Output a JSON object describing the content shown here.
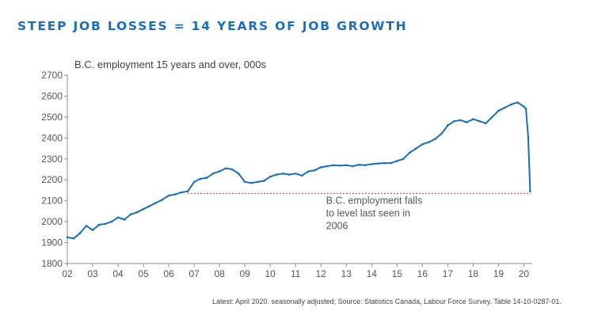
{
  "headline": "STEEP JOB LOSSES = 14 YEARS OF JOB GROWTH",
  "footnote": "Latest:  April 2020. seasonally adjusted;   Source: Statistics Canada, Labour Force Survey. Table 14-10-0287-01.",
  "colors": {
    "headline": "#1f6db2",
    "series": "#1f6db2",
    "reference": "#d62728",
    "axis": "#888888"
  },
  "chart_data": {
    "type": "line",
    "title": "B.C. employment 15 years and over, 000s",
    "xlabel": "",
    "ylabel": "",
    "x_tick_labels": [
      "02",
      "03",
      "04",
      "05",
      "06",
      "07",
      "08",
      "09",
      "10",
      "11",
      "12",
      "13",
      "14",
      "15",
      "16",
      "17",
      "18",
      "19",
      "20"
    ],
    "y_ticks": [
      1800,
      1900,
      2000,
      2100,
      2200,
      2300,
      2400,
      2500,
      2600,
      2700
    ],
    "ylim": [
      1800,
      2700
    ],
    "xlim": [
      2002.0,
      2020.33
    ],
    "grid": false,
    "series": [
      {
        "x": [
          2002.0,
          2002.25,
          2002.5,
          2002.75,
          2003.0,
          2003.25,
          2003.5,
          2003.75,
          2004.0,
          2004.25,
          2004.5,
          2004.75,
          2005.0,
          2005.25,
          2005.5,
          2005.75,
          2006.0,
          2006.25,
          2006.5,
          2006.75,
          2007.0,
          2007.25,
          2007.5,
          2007.75,
          2008.0,
          2008.25,
          2008.5,
          2008.75,
          2009.0,
          2009.25,
          2009.5,
          2009.75,
          2010.0,
          2010.25,
          2010.5,
          2010.75,
          2011.0,
          2011.25,
          2011.5,
          2011.75,
          2012.0,
          2012.25,
          2012.5,
          2012.75,
          2013.0,
          2013.25,
          2013.5,
          2013.75,
          2014.0,
          2014.25,
          2014.5,
          2014.75,
          2015.0,
          2015.25,
          2015.5,
          2015.75,
          2016.0,
          2016.25,
          2016.5,
          2016.75,
          2017.0,
          2017.25,
          2017.5,
          2017.75,
          2018.0,
          2018.25,
          2018.5,
          2018.75,
          2019.0,
          2019.25,
          2019.5,
          2019.75,
          2020.0,
          2020.08,
          2020.17,
          2020.25
        ],
        "y": [
          1925,
          1920,
          1945,
          1980,
          1960,
          1985,
          1990,
          2000,
          2020,
          2010,
          2035,
          2045,
          2060,
          2075,
          2090,
          2105,
          2125,
          2130,
          2140,
          2145,
          2190,
          2205,
          2210,
          2230,
          2240,
          2255,
          2250,
          2230,
          2190,
          2185,
          2190,
          2195,
          2215,
          2225,
          2230,
          2225,
          2230,
          2220,
          2240,
          2245,
          2260,
          2265,
          2270,
          2268,
          2270,
          2265,
          2272,
          2270,
          2275,
          2278,
          2280,
          2280,
          2290,
          2300,
          2330,
          2350,
          2370,
          2380,
          2395,
          2420,
          2460,
          2480,
          2485,
          2475,
          2490,
          2480,
          2470,
          2500,
          2530,
          2545,
          2560,
          2570,
          2550,
          2540,
          2405,
          2145
        ]
      }
    ],
    "reference_line": {
      "y": 2135,
      "x_start": 2006.75,
      "x_end": 2020.25,
      "style": "dotted"
    },
    "annotation": {
      "lines": [
        "B.C. employment falls",
        "to level last seen in",
        "2006"
      ],
      "x": 2012.2,
      "y": 2085
    }
  }
}
